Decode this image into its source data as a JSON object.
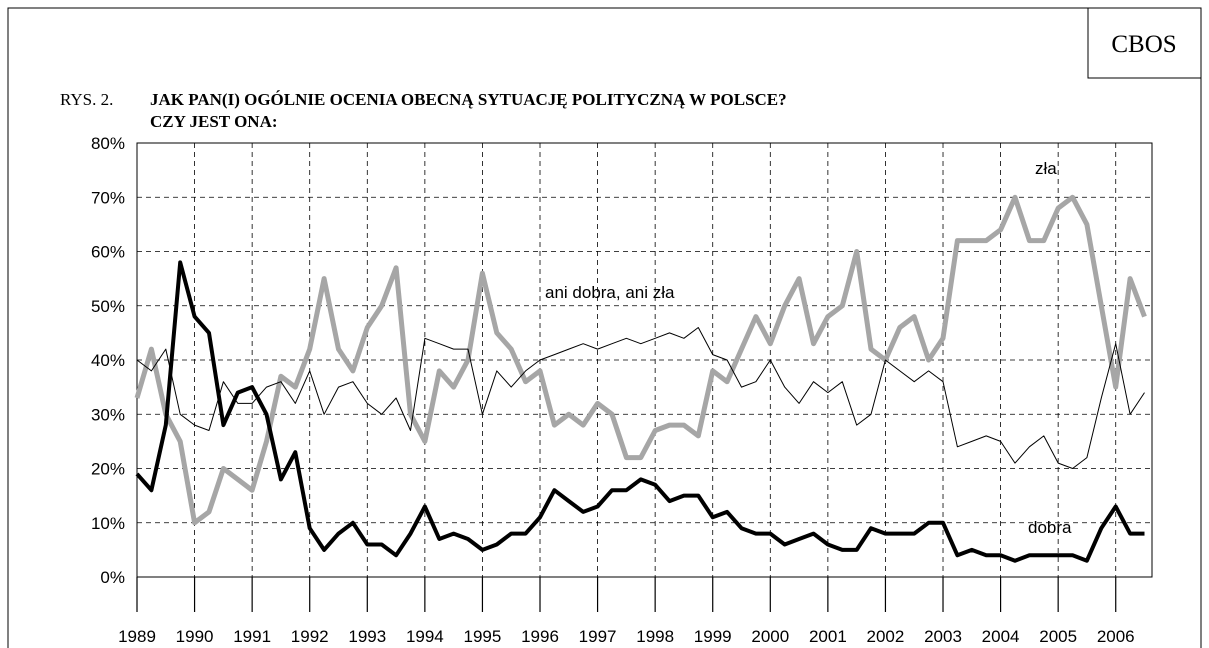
{
  "header": {
    "source": "CBOS"
  },
  "chart_data": {
    "type": "line",
    "figure_label": "RYS. 2.",
    "title_lines": [
      "JAK PAN(I) OGÓLNIE OCENIA OBECNĄ SYTUACJĘ POLITYCZNĄ W POLSCE?",
      "CZY JEST ONA:"
    ],
    "x": [
      1989,
      1989.25,
      1989.5,
      1989.75,
      1990,
      1990.25,
      1990.5,
      1990.75,
      1991,
      1991.25,
      1991.5,
      1991.75,
      1992,
      1992.25,
      1992.5,
      1992.75,
      1993,
      1993.25,
      1993.5,
      1993.75,
      1994,
      1994.25,
      1994.5,
      1994.75,
      1995,
      1995.25,
      1995.5,
      1995.75,
      1996,
      1996.25,
      1996.5,
      1996.75,
      1997,
      1997.25,
      1997.5,
      1997.75,
      1998,
      1998.25,
      1998.5,
      1998.75,
      1999,
      1999.25,
      1999.5,
      1999.75,
      2000,
      2000.25,
      2000.5,
      2000.75,
      2001,
      2001.25,
      2001.5,
      2001.75,
      2002,
      2002.25,
      2002.5,
      2002.75,
      2003,
      2003.25,
      2003.5,
      2003.75,
      2004,
      2004.25,
      2004.5,
      2004.75,
      2005,
      2005.25,
      2005.5,
      2005.75,
      2006,
      2006.25,
      2006.5
    ],
    "series": [
      {
        "name": "zła",
        "color": "#a6a6a6",
        "line_width": 5,
        "values": [
          33,
          42,
          30,
          25,
          10,
          12,
          20,
          18,
          16,
          25,
          37,
          35,
          42,
          55,
          42,
          38,
          46,
          50,
          57,
          30,
          25,
          38,
          35,
          40,
          56,
          45,
          42,
          36,
          38,
          28,
          30,
          28,
          32,
          30,
          22,
          22,
          27,
          28,
          28,
          26,
          38,
          36,
          42,
          48,
          43,
          50,
          55,
          43,
          48,
          50,
          60,
          42,
          40,
          46,
          48,
          40,
          44,
          62,
          62,
          62,
          64,
          70,
          62,
          62,
          68,
          70,
          65,
          50,
          35,
          55,
          48
        ]
      },
      {
        "name": "ani dobra, ani zła",
        "color": "#000000",
        "line_width": 1,
        "values": [
          40,
          38,
          42,
          30,
          28,
          27,
          36,
          32,
          32,
          35,
          36,
          32,
          38,
          30,
          35,
          36,
          32,
          30,
          33,
          27,
          44,
          43,
          42,
          42,
          30,
          38,
          35,
          38,
          40,
          41,
          42,
          43,
          42,
          43,
          44,
          43,
          44,
          45,
          44,
          46,
          41,
          40,
          35,
          36,
          40,
          35,
          32,
          36,
          34,
          36,
          28,
          30,
          40,
          38,
          36,
          38,
          36,
          24,
          25,
          26,
          25,
          21,
          24,
          26,
          21,
          20,
          22,
          33,
          43,
          30,
          34
        ]
      },
      {
        "name": "dobra",
        "color": "#000000",
        "line_width": 4,
        "values": [
          19,
          16,
          28,
          58,
          48,
          45,
          28,
          34,
          35,
          30,
          18,
          23,
          9,
          5,
          8,
          10,
          6,
          6,
          4,
          8,
          13,
          7,
          8,
          7,
          5,
          6,
          8,
          8,
          11,
          16,
          14,
          12,
          13,
          16,
          16,
          18,
          17,
          14,
          15,
          15,
          11,
          12,
          9,
          8,
          8,
          6,
          7,
          8,
          6,
          5,
          5,
          9,
          8,
          8,
          8,
          10,
          10,
          4,
          5,
          4,
          4,
          3,
          4,
          4,
          4,
          4,
          3,
          9,
          13,
          8,
          8
        ]
      }
    ],
    "xlim": [
      1989,
      2006.63
    ],
    "xticks": [
      1989,
      1990,
      1991,
      1992,
      1993,
      1994,
      1995,
      1996,
      1997,
      1998,
      1999,
      2000,
      2001,
      2002,
      2003,
      2004,
      2005,
      2006
    ],
    "ylim": [
      0,
      80
    ],
    "yticks": [
      {
        "value": 0,
        "label": "0%"
      },
      {
        "value": 10,
        "label": "10%"
      },
      {
        "value": 20,
        "label": "20%"
      },
      {
        "value": 30,
        "label": "30%"
      },
      {
        "value": 40,
        "label": "40%"
      },
      {
        "value": 50,
        "label": "50%"
      },
      {
        "value": 60,
        "label": "60%"
      },
      {
        "value": 70,
        "label": "70%"
      },
      {
        "value": 80,
        "label": "80%"
      }
    ],
    "grid": true
  }
}
